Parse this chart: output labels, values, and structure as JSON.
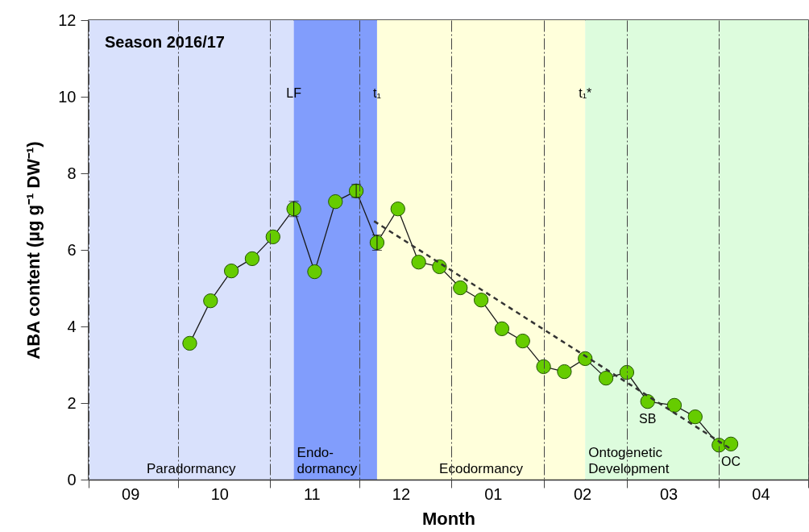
{
  "chart_data": {
    "type": "line",
    "xlabel": "Month",
    "ylabel": "ABA content (µg g⁻¹ DW⁻¹)",
    "xlim": [
      "2016-09-01",
      "2017-05-01"
    ],
    "xticks": [
      {
        "value": "2016-09-01",
        "label": null
      },
      {
        "value": "2016-09-15",
        "label": "09"
      },
      {
        "value": "2016-10-01",
        "label": null
      },
      {
        "value": "2016-10-15",
        "label": "10"
      },
      {
        "value": "2016-11-01",
        "label": null
      },
      {
        "value": "2016-11-15",
        "label": "11"
      },
      {
        "value": "2016-12-01",
        "label": null
      },
      {
        "value": "2016-12-15",
        "label": "12"
      },
      {
        "value": "2017-01-01",
        "label": null
      },
      {
        "value": "2017-01-15",
        "label": "01"
      },
      {
        "value": "2017-02-01",
        "label": null
      },
      {
        "value": "2017-02-14",
        "label": "02"
      },
      {
        "value": "2017-03-01",
        "label": null
      },
      {
        "value": "2017-03-15",
        "label": "03"
      },
      {
        "value": "2017-04-01",
        "label": null
      },
      {
        "value": "2017-04-15",
        "label": "04"
      },
      {
        "value": "2017-05-01",
        "label": null
      }
    ],
    "ylim": [
      0,
      12
    ],
    "yticks": [
      0,
      2,
      4,
      6,
      8,
      10,
      12
    ],
    "grid": "x",
    "marker": "circle",
    "line_style": "solid",
    "x": [
      "2016-10-05",
      "2016-10-12",
      "2016-10-19",
      "2016-10-26",
      "2016-11-02",
      "2016-11-09",
      "2016-11-16",
      "2016-11-23",
      "2016-11-30",
      "2016-12-07",
      "2016-12-14",
      "2016-12-21",
      "2016-12-28",
      "2017-01-04",
      "2017-01-11",
      "2017-01-18",
      "2017-01-25",
      "2017-02-01",
      "2017-02-08",
      "2017-02-15",
      "2017-02-22",
      "2017-03-01",
      "2017-03-08",
      "2017-03-17",
      "2017-03-24",
      "2017-04-01",
      "2017-04-05"
    ],
    "series": [
      {
        "color": "#1a1a1a",
        "colors": [
          "#66cc00",
          "#66cc00",
          "#66cc00",
          "#66cc00",
          "#66cc00",
          "#66cc00",
          "#66cc00",
          "#66cc00",
          "#66cc00",
          "#66cc00",
          "#66cc00",
          "#66cc00",
          "#66cc00",
          "#66cc00",
          "#66cc00",
          "#66cc00",
          "#66cc00",
          "#66cc00",
          "#66cc00",
          "#66cc00",
          "#66cc00",
          "#66cc00",
          "#66cc00",
          "#66cc00",
          "#66cc00",
          "#66cc00",
          "#66cc00"
        ],
        "values": [
          3.56,
          4.67,
          5.45,
          5.77,
          6.34,
          7.07,
          5.43,
          7.26,
          7.54,
          6.19,
          7.07,
          5.68,
          5.56,
          5.01,
          4.69,
          3.94,
          3.62,
          2.95,
          2.82,
          3.16,
          2.65,
          2.8,
          2.04,
          1.94,
          1.64,
          0.9,
          0.93
        ],
        "errors": [
          null,
          null,
          null,
          null,
          null,
          0.2,
          null,
          null,
          0.17,
          0.2,
          null,
          null,
          null,
          null,
          null,
          null,
          null,
          null,
          null,
          null,
          null,
          null,
          null,
          null,
          null,
          null,
          null
        ]
      },
      {
        "type": "line",
        "color": "#333333",
        "line_style": "dashed",
        "marker": "none",
        "x": [
          "2016-12-06",
          "2017-04-05"
        ],
        "values": [
          6.75,
          0.8
        ]
      }
    ],
    "bands": [
      {
        "axis": "x",
        "from": "2016-09-01",
        "to": "2016-11-09",
        "label": "Paradormancy",
        "color": "#d9e1fc"
      },
      {
        "axis": "x",
        "from": "2016-11-09",
        "to": "2016-12-07",
        "label": "Endo-\ndormancy",
        "color": "#819dfc"
      },
      {
        "axis": "x",
        "from": "2016-12-07",
        "to": "2017-02-15",
        "label": "Ecodormancy",
        "color": "#ffffdb"
      },
      {
        "axis": "x",
        "from": "2017-02-15",
        "to": "2017-05-01",
        "label": "Ontogenetic\nDevelopment",
        "color": "#ddfcdd"
      }
    ],
    "annotations": [
      "Season 2016/17",
      {
        "text": "LF",
        "x": "2016-11-09",
        "y": 10.55
      },
      {
        "text": "t₁",
        "x": "2016-12-07",
        "y": 10.55
      },
      {
        "text": "t₁*",
        "x": "2017-02-15",
        "y": 10.55
      },
      {
        "text": "SB",
        "x": "2017-03-08",
        "y": 2.04
      },
      {
        "text": "OC",
        "x": "2017-04-05",
        "y": 0.93
      }
    ]
  }
}
